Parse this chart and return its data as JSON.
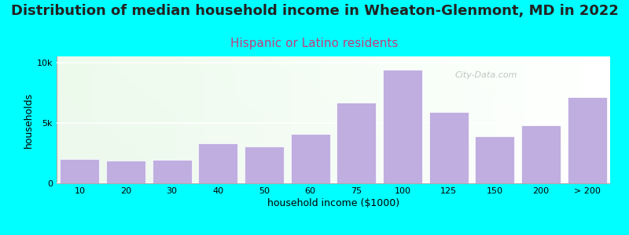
{
  "title": "Distribution of median household income in Wheaton-Glenmont, MD in 2022",
  "subtitle": "Hispanic or Latino residents",
  "xlabel": "household income ($1000)",
  "ylabel": "households",
  "background_color": "#00FFFF",
  "bar_color": "#c0aee0",
  "title_fontsize": 13,
  "subtitle_fontsize": 11,
  "subtitle_color": "#c04080",
  "categories": [
    "10",
    "20",
    "30",
    "40",
    "50",
    "60",
    "75",
    "100",
    "125",
    "150",
    "200",
    "> 200"
  ],
  "values": [
    2000,
    1850,
    1950,
    3300,
    3050,
    4100,
    6700,
    9400,
    5900,
    3900,
    4800,
    7100
  ],
  "ylim": [
    0,
    10500
  ],
  "yticks": [
    0,
    5000,
    10000
  ],
  "ytick_labels": [
    "0",
    "5k",
    "10k"
  ],
  "watermark": "City-Data.com"
}
